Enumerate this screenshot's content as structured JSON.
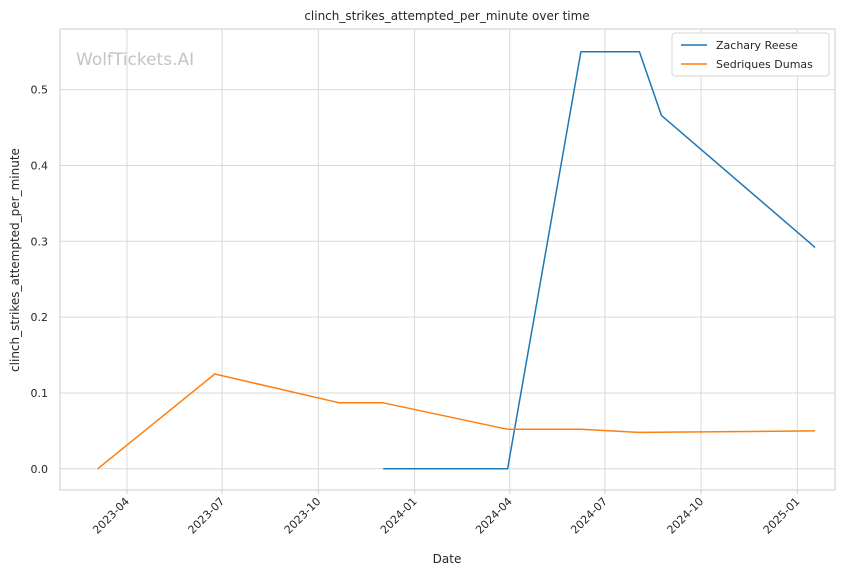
{
  "chart_data": {
    "type": "line",
    "title": "clinch_strikes_attempted_per_minute over time",
    "xlabel": "Date",
    "ylabel": "clinch_strikes_attempted_per_minute",
    "watermark": "WolfTickets.AI",
    "x_ticks": [
      "2023-04",
      "2023-07",
      "2023-10",
      "2024-01",
      "2024-04",
      "2024-07",
      "2024-10",
      "2025-01"
    ],
    "y_ticks": [
      "0.0",
      "0.1",
      "0.2",
      "0.3",
      "0.4",
      "0.5"
    ],
    "xlim": [
      "2023-01-27",
      "2025-02-06"
    ],
    "ylim": [
      -0.028,
      0.58
    ],
    "grid": true,
    "legend_position": "top-right",
    "series": [
      {
        "name": "Zachary Reese",
        "color": "#1f77b4",
        "x": [
          "2023-12-02",
          "2024-03-30",
          "2024-06-08",
          "2024-08-03",
          "2024-08-24",
          "2025-01-18"
        ],
        "y": [
          0.0,
          0.0,
          0.55,
          0.55,
          0.466,
          0.292
        ]
      },
      {
        "name": "Sedriques Dumas",
        "color": "#ff7f0e",
        "x": [
          "2023-03-04",
          "2023-06-24",
          "2023-10-21",
          "2023-12-02",
          "2024-03-30",
          "2024-06-08",
          "2024-08-03",
          "2025-01-18"
        ],
        "y": [
          0.0,
          0.125,
          0.087,
          0.087,
          0.052,
          0.052,
          0.048,
          0.05
        ]
      }
    ]
  }
}
